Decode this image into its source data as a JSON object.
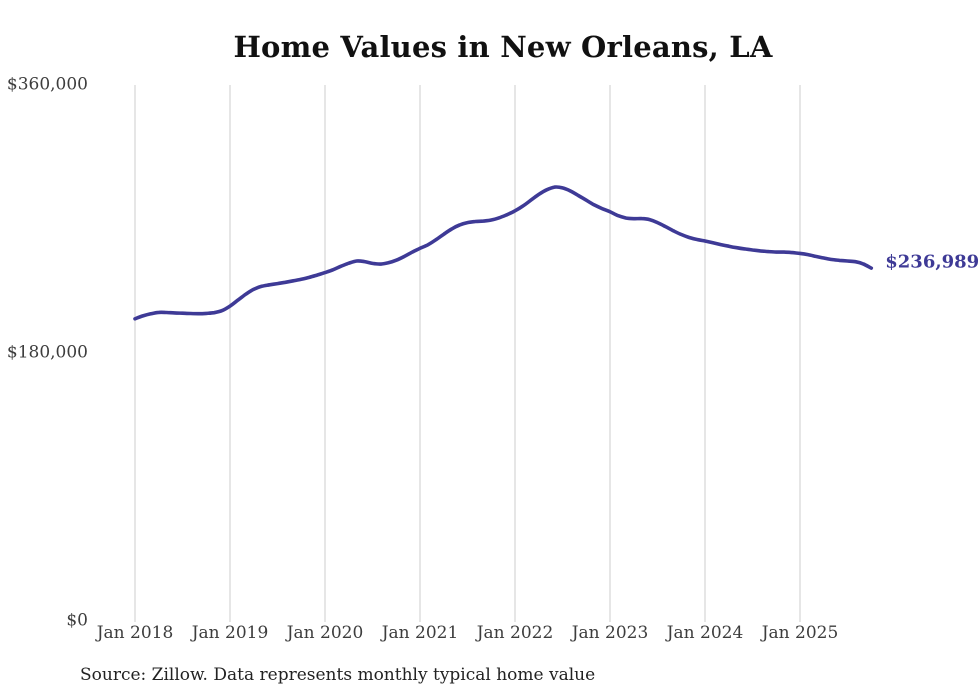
{
  "title": "Home Values in New Orleans, LA",
  "source_note": "Source: Zillow. Data represents monthly typical home value",
  "colors": {
    "background": "#ffffff",
    "line": "#3e3a96",
    "grid": "#cccccc",
    "axis_label": "#3d3d3d",
    "title": "#111111",
    "source": "#222222",
    "end_label": "#3e3a96"
  },
  "chart_data": {
    "type": "line",
    "title": "Home Values in New Orleans, LA",
    "xlabel": "",
    "ylabel": "",
    "ylim": [
      0,
      360000
    ],
    "grid": "vertical-only",
    "legend": "none",
    "x_start": "2018-01",
    "x_frequency": "monthly",
    "x_tick_labels": [
      "Jan 2018",
      "Jan 2019",
      "Jan 2020",
      "Jan 2021",
      "Jan 2022",
      "Jan 2023",
      "Jan 2024",
      "Jan 2025"
    ],
    "y_tick_labels": [
      {
        "label": "$360,000",
        "value": 360000
      },
      {
        "label": "$180,000",
        "value": 180000
      },
      {
        "label": "$0",
        "value": 0
      }
    ],
    "end_label": "$236,989",
    "last_point": {
      "month": "2025-10",
      "value": 236989
    },
    "series": [
      {
        "name": "Typical home value (USD)",
        "values": [
          203000,
          204900,
          206300,
          207300,
          207200,
          206900,
          206700,
          206500,
          206400,
          206600,
          207100,
          208500,
          211500,
          215500,
          219500,
          222800,
          224800,
          225800,
          226600,
          227500,
          228500,
          229500,
          230800,
          232300,
          234000,
          235900,
          238200,
          240300,
          241800,
          241400,
          240200,
          239700,
          240600,
          242300,
          244800,
          247700,
          250300,
          252700,
          256000,
          259800,
          263300,
          266000,
          267600,
          268300,
          268600,
          269300,
          270800,
          272900,
          275500,
          278700,
          282600,
          286500,
          289600,
          291400,
          290900,
          288800,
          285800,
          282600,
          279500,
          277000,
          274900,
          272300,
          270700,
          270200,
          270300,
          269600,
          267600,
          264900,
          262100,
          259600,
          257600,
          256200,
          255200,
          254000,
          252800,
          251700,
          250700,
          249900,
          249200,
          248600,
          248100,
          247800,
          247800,
          247400,
          246900,
          246100,
          244900,
          243800,
          242800,
          242200,
          241800,
          241300,
          239800,
          236989
        ]
      }
    ]
  }
}
